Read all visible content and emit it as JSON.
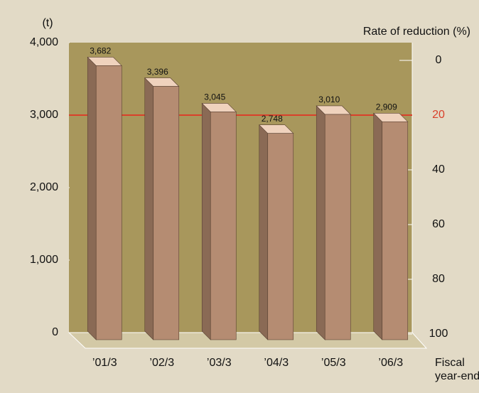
{
  "chart_data": {
    "type": "bar3d",
    "y_unit_label": "(t)",
    "y2_label": "Rate of reduction (%)",
    "xlabel": [
      "Fiscal",
      "year-end"
    ],
    "categories": [
      "’01/3",
      "’02/3",
      "’03/3",
      "’04/3",
      "’05/3",
      "’06/3"
    ],
    "values": [
      3682,
      3396,
      3045,
      2748,
      3010,
      2909
    ],
    "value_labels": [
      "3,682",
      "3,396",
      "3,045",
      "2,748",
      "3,010",
      "2,909"
    ],
    "color": "#b58c72",
    "ylim": [
      0,
      4000
    ],
    "yticks": [
      0,
      {
        "value": 1000,
        "label": "1,000"
      },
      {
        "value": 2000,
        "label": "2,000"
      },
      {
        "value": 3000,
        "label": "3,000"
      },
      {
        "value": 4000,
        "label": "4,000"
      }
    ],
    "y2lim": [
      100,
      0
    ],
    "y2ticks": [
      0,
      20,
      40,
      60,
      80,
      100
    ],
    "reference_line": {
      "axis": "y2",
      "value": 20,
      "color": "#d9402b"
    }
  }
}
